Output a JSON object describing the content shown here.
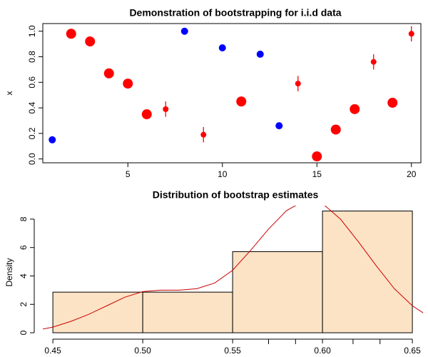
{
  "chart_data": [
    {
      "type": "scatter",
      "title": "Demonstration of bootstrapping for i.i.d data",
      "y_label": "x",
      "xlim": [
        0.5,
        20.5
      ],
      "ylim": [
        -0.03,
        1.06
      ],
      "xticks": [
        5,
        10,
        15,
        20
      ],
      "yticks": [
        {
          "value": 0,
          "label": "0.0"
        },
        {
          "value": 0.2,
          "label": "0.2"
        },
        {
          "value": 0.4,
          "label": "0.4"
        },
        {
          "value": 0.6,
          "label": "0.6"
        },
        {
          "value": 0.8,
          "label": "0.8"
        },
        {
          "value": 1,
          "label": "1.0"
        }
      ],
      "series": [
        {
          "color": "#0000ff",
          "marker_size": 5,
          "x": [
            1,
            8,
            10,
            12,
            13
          ],
          "values": [
            0.15,
            1.0,
            0.87,
            0.82,
            0.26
          ]
        },
        {
          "color": "#ff0000",
          "marker_size": 7,
          "x": [
            2,
            3,
            4,
            5,
            6,
            11,
            15,
            16,
            17,
            19
          ],
          "values": [
            0.98,
            0.92,
            0.67,
            0.59,
            0.35,
            0.45,
            0.02,
            0.23,
            0.39,
            0.44
          ]
        },
        {
          "color": "#ff0000",
          "marker_size": 4,
          "x": [
            7,
            9,
            14,
            18,
            20
          ],
          "values": [
            0.39,
            0.19,
            0.59,
            0.76,
            0.98
          ],
          "errors": [
            0.06,
            0.06,
            0.06,
            0.06,
            0.06
          ]
        }
      ]
    },
    {
      "type": "histogram",
      "title": "Distribution of bootstrap estimates",
      "y_label": "Density",
      "xlim": [
        0.4444,
        0.6587
      ],
      "ylim": [
        -0.45,
        8.95
      ],
      "xticks": [
        0.45,
        {
          "value": 0.5,
          "label": "0.50"
        },
        0.55,
        {
          "value": 0.6,
          "label": "0.60"
        },
        0.65
      ],
      "yticks": [
        0,
        2,
        4,
        6,
        8
      ],
      "bins": [
        0.45,
        0.5,
        0.55,
        0.6,
        0.65
      ],
      "values": [
        2.86,
        2.86,
        5.71,
        8.57
      ],
      "color": "#fde3c5",
      "rug": [
        0.57,
        0.585,
        0.617,
        0.632
      ],
      "density": {
        "color": "#cc0000",
        "x": [
          0.444,
          0.45,
          0.46,
          0.47,
          0.48,
          0.49,
          0.5,
          0.51,
          0.52,
          0.53,
          0.54,
          0.55,
          0.56,
          0.57,
          0.58,
          0.59,
          0.6,
          0.61,
          0.62,
          0.63,
          0.64,
          0.65,
          0.656
        ],
        "values": [
          0.25,
          0.4,
          0.8,
          1.3,
          1.9,
          2.5,
          2.9,
          3.0,
          3.0,
          3.1,
          3.5,
          4.4,
          5.8,
          7.3,
          8.6,
          9.3,
          9.1,
          8.0,
          6.4,
          4.7,
          3.1,
          1.9,
          1.4
        ]
      }
    }
  ]
}
